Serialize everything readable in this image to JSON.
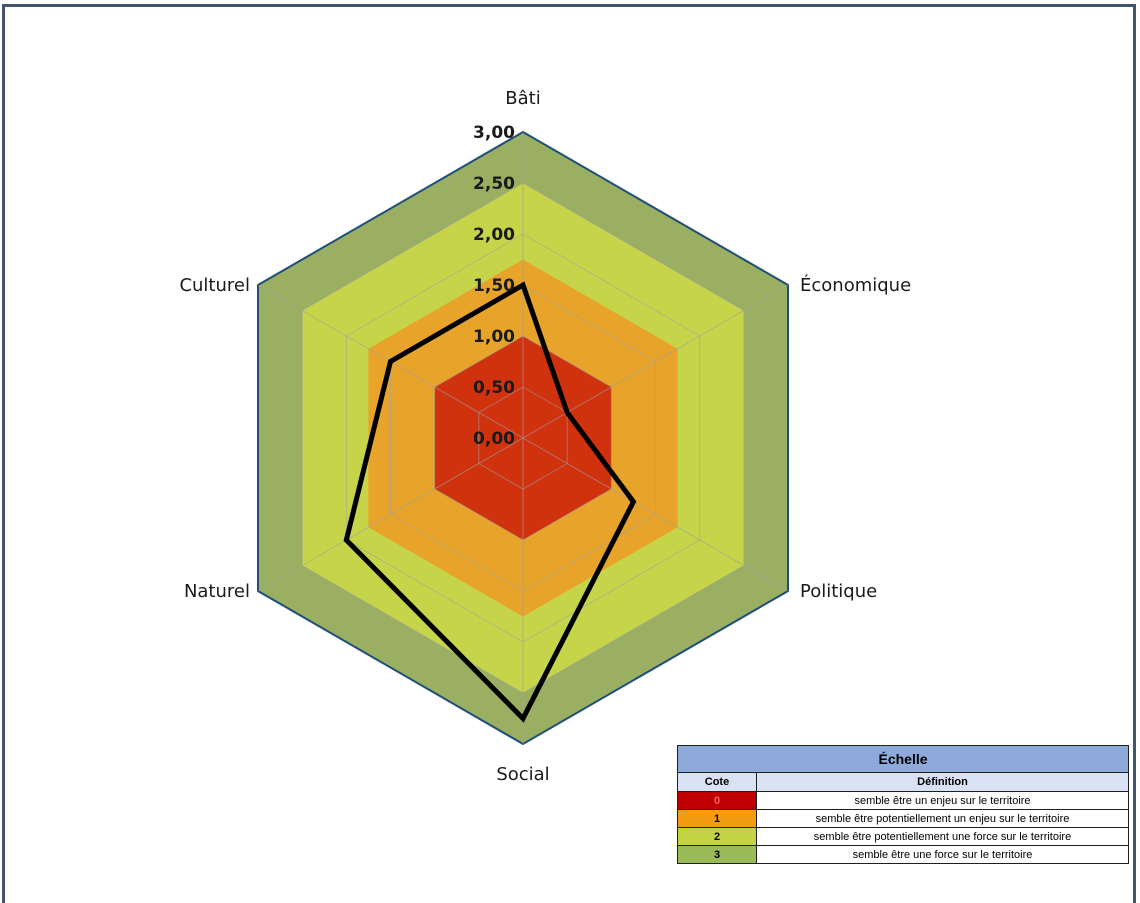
{
  "chart_data": {
    "type": "radar",
    "axes": [
      "Bâti",
      "Économique",
      "Politique",
      "Social",
      "Naturel",
      "Culturel"
    ],
    "ticks": [
      "0,00",
      "0,50",
      "1,00",
      "1,50",
      "2,00",
      "2,50",
      "3,00"
    ],
    "rmax": 3,
    "bands": [
      {
        "from": 2,
        "to": 3,
        "color": "#9bbb59"
      },
      {
        "from": 1,
        "to": 2,
        "color": "#c3d343"
      },
      {
        "from": 0,
        "to": 1,
        "color": "#f0a020"
      },
      {
        "from": 0,
        "to": 0,
        "color": "#d03010"
      }
    ],
    "band_levels": [
      {
        "level": 3.0,
        "color": "#9aaf62"
      },
      {
        "level": 2.5,
        "color": "#c5d449"
      },
      {
        "level": 1.75,
        "color": "#e8a42a"
      },
      {
        "level": 1.0,
        "color": "#d0320e"
      }
    ],
    "series": [
      {
        "values": [
          1.5,
          0.5,
          1.25,
          2.75,
          2.0,
          1.5
        ],
        "color": "#000000"
      }
    ]
  },
  "legend": {
    "title": "Échelle",
    "col_cote": "Cote",
    "col_def": "Définition",
    "rows": [
      {
        "cote": "0",
        "definition": "semble être un enjeu sur le territoire",
        "color": "#c00000",
        "text_color": "#ff6060"
      },
      {
        "cote": "1",
        "definition": "semble être potentiellement un enjeu sur le territoire",
        "color": "#f39c12",
        "text_color": "#000000"
      },
      {
        "cote": "2",
        "definition": "semble être potentiellement une force sur le territoire",
        "color": "#c3d343",
        "text_color": "#000000"
      },
      {
        "cote": "3",
        "definition": "semble être une force sur le territoire",
        "color": "#9bbb59",
        "text_color": "#000000"
      }
    ]
  }
}
